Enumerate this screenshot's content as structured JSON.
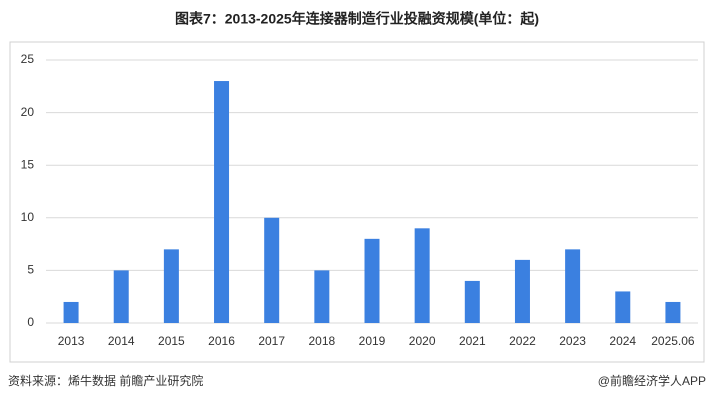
{
  "chart_data": {
    "type": "bar",
    "title": "图表7：2013-2025年连接器制造行业投融资规模(单位：起)",
    "categories": [
      "2013",
      "2014",
      "2015",
      "2016",
      "2017",
      "2018",
      "2019",
      "2020",
      "2021",
      "2022",
      "2023",
      "2024",
      "2025.06"
    ],
    "values": [
      2,
      5,
      7,
      23,
      10,
      5,
      8,
      9,
      4,
      6,
      7,
      3,
      2
    ],
    "color": "#3b80e0",
    "ylim": [
      0,
      25
    ],
    "yticks": [
      0,
      5,
      10,
      15,
      20,
      25
    ],
    "grid": true,
    "source": "资料来源：烯牛数据 前瞻产业研究院",
    "credit": "@前瞻经济学人APP"
  }
}
